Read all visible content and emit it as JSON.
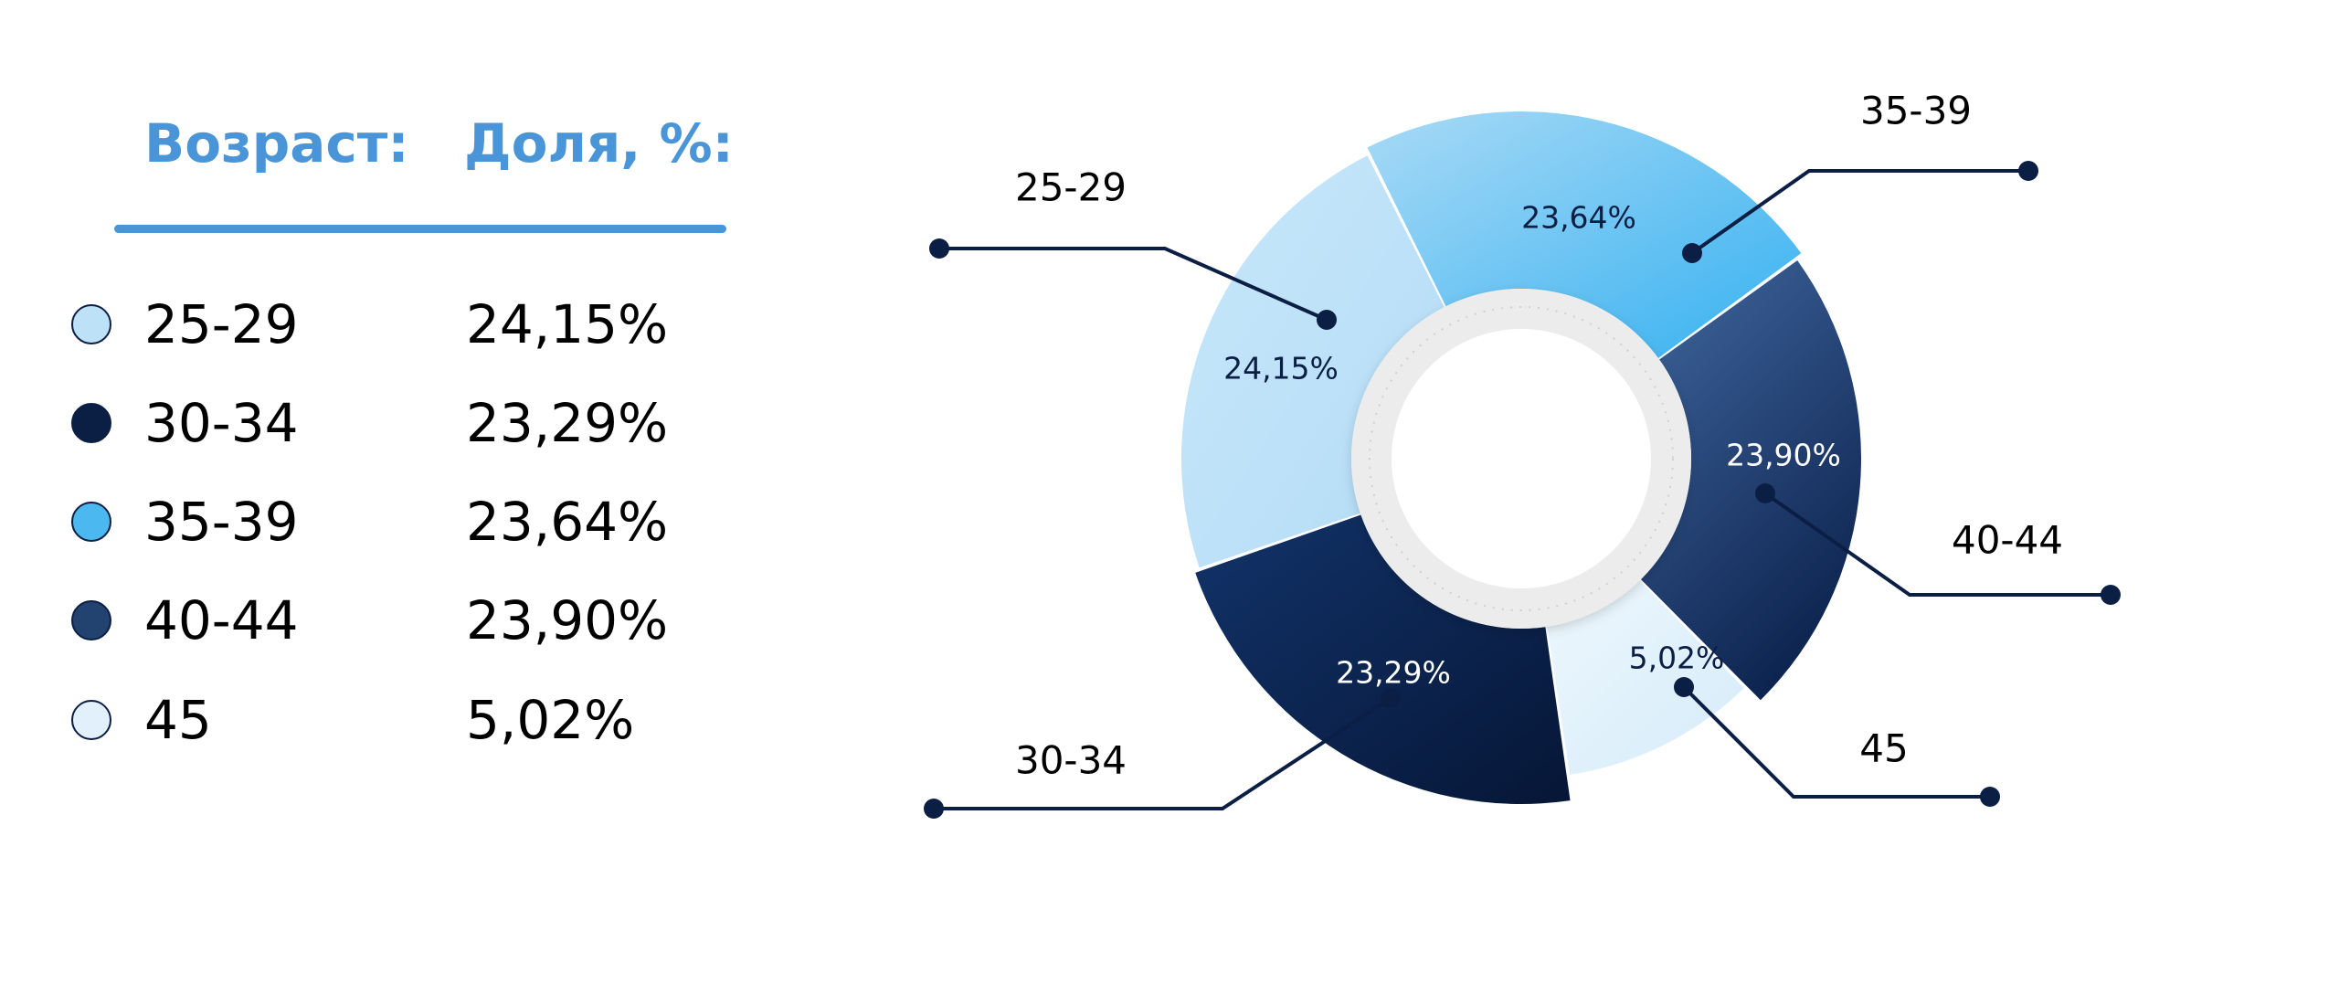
{
  "legend": {
    "headers": {
      "age": "Возраст:",
      "share": "Доля, %:"
    },
    "rows": [
      {
        "label": "25-29",
        "value": "24,15%",
        "color": "#bde2f8"
      },
      {
        "label": "30-34",
        "value": "23,29%",
        "color": "#0b1f45"
      },
      {
        "label": "35-39",
        "value": "23,64%",
        "color": "#4cb8f0"
      },
      {
        "label": "40-44",
        "value": "23,90%",
        "color": "#22426f"
      },
      {
        "label": "45",
        "value": "5,02%",
        "color": "#e1f0fa"
      }
    ]
  },
  "chart_data": {
    "type": "pie",
    "style": "donut",
    "categories": [
      "25-29",
      "35-39",
      "40-44",
      "45",
      "30-34"
    ],
    "values": [
      24.15,
      23.64,
      23.9,
      5.02,
      23.29
    ],
    "data_labels": [
      "24,15%",
      "23,64%",
      "23,90%",
      "5,02%",
      "23,29%"
    ],
    "colors": [
      "#bde2f8",
      "#4cb8f0",
      "#22426f",
      "#e1f0fa",
      "#0b1f45"
    ],
    "callout_color": "#0b1f45"
  }
}
